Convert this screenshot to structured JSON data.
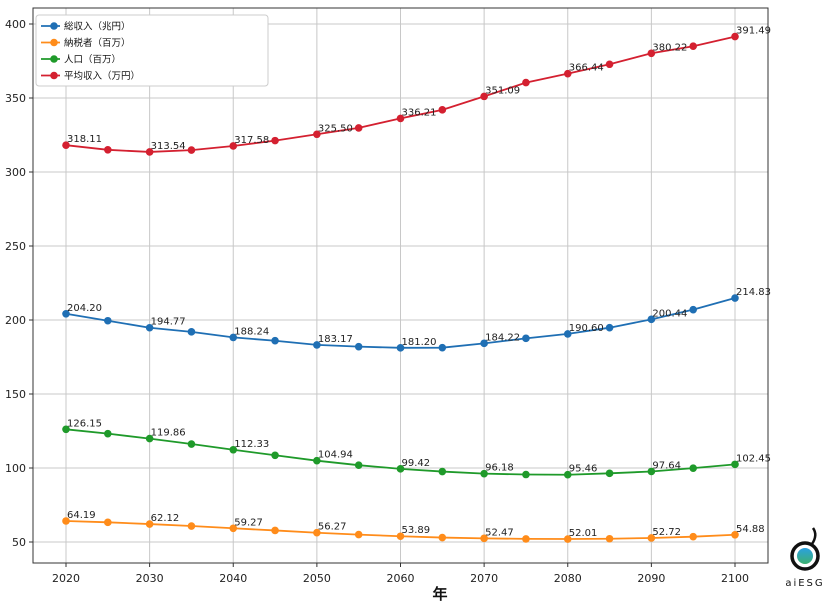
{
  "chart_data": {
    "type": "line",
    "title": "",
    "xlabel": "年",
    "ylabel": "",
    "xlim": [
      2016,
      2104
    ],
    "ylim": [
      26,
      410
    ],
    "grid": true,
    "legend_position": "top-left",
    "x_ticks": [
      2020,
      2030,
      2040,
      2050,
      2060,
      2070,
      2080,
      2090,
      2100
    ],
    "y_ticks": [
      50,
      100,
      150,
      200,
      250,
      300,
      350,
      400
    ],
    "x": [
      2020,
      2025,
      2030,
      2035,
      2040,
      2045,
      2050,
      2055,
      2060,
      2065,
      2070,
      2075,
      2080,
      2085,
      2090,
      2095,
      2100
    ],
    "series": [
      {
        "name": "総収入（兆円）",
        "color": "#1f6fb4",
        "values": [
          204.2,
          199.5,
          194.77,
          192.0,
          188.24,
          186.0,
          183.17,
          182.0,
          181.2,
          181.3,
          184.22,
          187.6,
          190.6,
          194.8,
          200.44,
          207.0,
          214.83
        ],
        "labels": [
          "204.20",
          "",
          "194.77",
          "",
          "188.24",
          "",
          "183.17",
          "",
          "181.20",
          "",
          "184.22",
          "",
          "190.60",
          "",
          "200.44",
          "",
          "214.83"
        ]
      },
      {
        "name": "納税者（百万）",
        "color": "#ff8c1a",
        "values": [
          64.19,
          63.3,
          62.12,
          60.8,
          59.27,
          57.8,
          56.27,
          55.0,
          53.89,
          53.0,
          52.47,
          52.1,
          52.01,
          52.2,
          52.72,
          53.6,
          54.88
        ],
        "labels": [
          "64.19",
          "",
          "62.12",
          "",
          "59.27",
          "",
          "56.27",
          "",
          "53.89",
          "",
          "52.47",
          "",
          "52.01",
          "",
          "52.72",
          "",
          "54.88"
        ]
      },
      {
        "name": "人口（百万）",
        "color": "#1f9a2a",
        "values": [
          126.15,
          123.2,
          119.86,
          116.2,
          112.33,
          108.6,
          104.94,
          101.9,
          99.42,
          97.6,
          96.18,
          95.6,
          95.46,
          96.4,
          97.64,
          99.9,
          102.45
        ],
        "labels": [
          "126.15",
          "",
          "119.86",
          "",
          "112.33",
          "",
          "104.94",
          "",
          "99.42",
          "",
          "96.18",
          "",
          "95.46",
          "",
          "97.64",
          "",
          "102.45"
        ]
      },
      {
        "name": "平均収入（万円）",
        "color": "#d42030",
        "values": [
          318.11,
          315.0,
          313.54,
          314.8,
          317.58,
          321.2,
          325.5,
          329.8,
          336.21,
          342.0,
          351.09,
          360.4,
          366.44,
          372.8,
          380.22,
          385.0,
          391.49
        ],
        "labels": [
          "318.11",
          "",
          "313.54",
          "",
          "317.58",
          "",
          "325.50",
          "",
          "336.21",
          "",
          "351.09",
          "",
          "366.44",
          "",
          "380.22",
          "",
          "391.49"
        ]
      }
    ]
  },
  "logo": {
    "text": "aiESG"
  }
}
